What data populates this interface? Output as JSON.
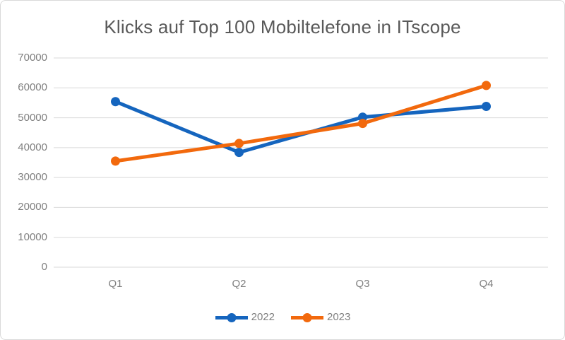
{
  "chart_data": {
    "type": "line",
    "title": "Klicks auf Top 100 Mobiltelefone in ITscope",
    "categories": [
      "Q1",
      "Q2",
      "Q3",
      "Q4"
    ],
    "series": [
      {
        "name": "2022",
        "color": "#1565be",
        "values": [
          55400,
          38400,
          50200,
          53800
        ]
      },
      {
        "name": "2023",
        "color": "#f2690d",
        "values": [
          35500,
          41400,
          48100,
          60800
        ]
      }
    ],
    "xlabel": "",
    "ylabel": "",
    "ylim": [
      0,
      70000
    ],
    "yticks": [
      0,
      10000,
      20000,
      30000,
      40000,
      50000,
      60000,
      70000
    ],
    "grid": "horizontal",
    "legend_position": "bottom"
  },
  "style": {
    "title_color": "#595959",
    "axis_label_color": "#7f7f7f",
    "gridline_color": "#d9d9d9",
    "border_color": "#d9d9d9",
    "background": "#ffffff"
  }
}
